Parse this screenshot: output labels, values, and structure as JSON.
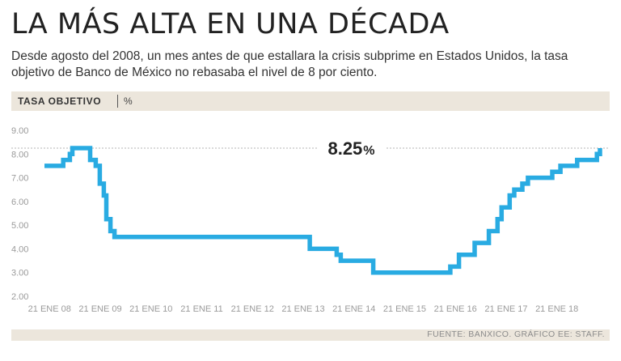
{
  "header": {
    "title": "LA MÁS ALTA EN UNA DÉCADA",
    "subtitle": "Desde agosto del 2008, un mes antes de que estallara la crisis subprime en Estados Unidos, la tasa objetivo de Banco de México no rebasaba el nivel de 8 por ciento."
  },
  "band": {
    "title": "TASA OBJETIVO",
    "unit": "%"
  },
  "footer": {
    "source": "FUENTE: BANXICO. GRÁFICO EE: STAFF."
  },
  "colors": {
    "line": "#29abe2",
    "band": "#ece6dc",
    "text": "#222222",
    "tick": "#9a9a9a"
  },
  "chart_data": {
    "type": "line",
    "title": "TASA OBJETIVO",
    "ylabel": "%",
    "ylim": [
      2.0,
      9.0
    ],
    "yticks": [
      "9.00",
      "8.00",
      "7.00",
      "6.00",
      "5.00",
      "4.00",
      "3.00",
      "2.00"
    ],
    "xticks": [
      {
        "label": "21 ENE 08",
        "x": 2008.05
      },
      {
        "label": "21 ENE 09",
        "x": 2009.05
      },
      {
        "label": "21 ENE 10",
        "x": 2010.05
      },
      {
        "label": "21 ENE 11",
        "x": 2011.05
      },
      {
        "label": "21 ENE 12",
        "x": 2012.05
      },
      {
        "label": "21 ENE 13",
        "x": 2013.05
      },
      {
        "label": "21 ENE 14",
        "x": 2014.05
      },
      {
        "label": "21 ENE 15",
        "x": 2015.05
      },
      {
        "label": "21 ENE 16",
        "x": 2016.05
      },
      {
        "label": "21 ENE 17",
        "x": 2017.05
      },
      {
        "label": "21 ENE 18",
        "x": 2018.05
      }
    ],
    "xlim": [
      2007.95,
      2018.9
    ],
    "peak": {
      "value": "8.25",
      "unit": "%",
      "y": 8.25
    },
    "series": [
      {
        "steps": [
          [
            2007.95,
            7.5
          ],
          [
            2008.32,
            7.75
          ],
          [
            2008.45,
            8.0
          ],
          [
            2008.5,
            8.25
          ],
          [
            2008.85,
            7.75
          ],
          [
            2008.96,
            7.5
          ],
          [
            2009.04,
            6.75
          ],
          [
            2009.12,
            6.25
          ],
          [
            2009.17,
            5.25
          ],
          [
            2009.25,
            4.75
          ],
          [
            2009.33,
            4.5
          ],
          [
            2012.2,
            4.5
          ],
          [
            2013.18,
            4.0
          ],
          [
            2013.71,
            3.75
          ],
          [
            2013.79,
            3.5
          ],
          [
            2014.43,
            3.0
          ],
          [
            2015.45,
            3.0
          ],
          [
            2015.95,
            3.25
          ],
          [
            2016.12,
            3.75
          ],
          [
            2016.43,
            4.25
          ],
          [
            2016.71,
            4.75
          ],
          [
            2016.88,
            5.25
          ],
          [
            2016.96,
            5.75
          ],
          [
            2017.12,
            6.25
          ],
          [
            2017.21,
            6.5
          ],
          [
            2017.37,
            6.75
          ],
          [
            2017.48,
            7.0
          ],
          [
            2017.96,
            7.25
          ],
          [
            2018.12,
            7.5
          ],
          [
            2018.45,
            7.75
          ],
          [
            2018.84,
            8.0
          ],
          [
            2018.9,
            8.25
          ]
        ]
      }
    ]
  }
}
